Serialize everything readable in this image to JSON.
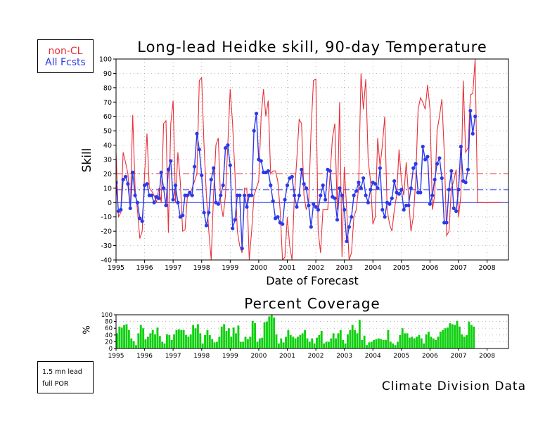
{
  "legend": {
    "items": [
      {
        "label": "non-CL",
        "color": "#e8303a"
      },
      {
        "label": "All Fcsts",
        "color": "#2a3ae8"
      }
    ]
  },
  "note": {
    "line1": "1.5 mn lead",
    "line2": "full POR"
  },
  "source_label": "Climate Division Data",
  "colors": {
    "red": "#e8303a",
    "blue": "#2a3ae8",
    "green": "#10d010"
  },
  "chart_data": [
    {
      "type": "line",
      "title": "Long-lead Heidke skill, 90-day Temperature",
      "xlabel": "Date of Forecast",
      "ylabel": "Skill",
      "xlim": [
        1995.0,
        2008.75
      ],
      "ylim": [
        -40,
        100
      ],
      "x_ticks": [
        1995,
        1996,
        1997,
        1998,
        1999,
        2000,
        2001,
        2002,
        2003,
        2004,
        2005,
        2006,
        2007,
        2008
      ],
      "y_ticks": [
        -40,
        -30,
        -20,
        -10,
        0,
        10,
        20,
        30,
        40,
        50,
        60,
        70,
        80,
        90,
        100
      ],
      "grid": true,
      "reference_lines": [
        {
          "series": "non-CL",
          "value": 20,
          "color": "#e8303a"
        },
        {
          "series": "All Fcsts",
          "value": 9,
          "color": "#2a3ae8"
        }
      ],
      "series": [
        {
          "name": "non-CL",
          "color": "#e8303a",
          "start": 1995.0,
          "step": 0.08333,
          "values": [
            35,
            -10,
            -7,
            35,
            28,
            20,
            -5,
            61,
            10,
            -5,
            -25,
            -20,
            20,
            48,
            10,
            8,
            5,
            0,
            10,
            0,
            55,
            57,
            -21,
            55,
            71,
            0,
            35,
            15,
            -20,
            -19,
            5,
            5,
            10,
            15,
            20,
            85,
            87,
            40,
            5,
            -20,
            -40,
            5,
            40,
            45,
            0,
            -10,
            5,
            40,
            79,
            55,
            20,
            -20,
            -30,
            -35,
            10,
            10,
            -40,
            -20,
            5,
            10,
            15,
            60,
            79,
            60,
            71,
            20,
            22,
            22,
            15,
            -5,
            -40,
            -38,
            -10,
            -30,
            -40,
            5,
            30,
            58,
            55,
            5,
            -5,
            0,
            50,
            85,
            86,
            -20,
            -35,
            -5,
            -5,
            -5,
            20,
            45,
            55,
            -5,
            70,
            -38,
            25,
            -5,
            -40,
            -35,
            -10,
            -5,
            10,
            90,
            65,
            86,
            30,
            15,
            -15,
            -10,
            45,
            25,
            40,
            60,
            -5,
            -15,
            -20,
            -5,
            5,
            37,
            15,
            5,
            28,
            5,
            -20,
            -10,
            15,
            65,
            73,
            70,
            65,
            82,
            65,
            -5,
            5,
            50,
            60,
            72,
            35,
            -23,
            -20,
            10,
            15,
            23,
            -10,
            5,
            85,
            35,
            38,
            75,
            76,
            100,
            0,
            0,
            0,
            0,
            0,
            0,
            0,
            0,
            0,
            0,
            0
          ]
        },
        {
          "name": "All Fcsts",
          "color": "#2a3ae8",
          "start": 1995.0,
          "step": 0.08333,
          "values": [
            14,
            -6,
            -5,
            16,
            18,
            13,
            -4,
            21,
            5,
            0,
            -11,
            -13,
            12,
            13,
            5,
            5,
            0,
            4,
            3,
            21,
            10,
            -2,
            23,
            29,
            2,
            12,
            0,
            -10,
            -9,
            5,
            5,
            7,
            5,
            25,
            48,
            37,
            19,
            -7,
            -16,
            -7,
            16,
            24,
            0,
            -1,
            5,
            12,
            38,
            40,
            26,
            -18,
            -12,
            5,
            5,
            -32,
            5,
            -3,
            5,
            5,
            50,
            62,
            30,
            29,
            21,
            21,
            22,
            12,
            1,
            -11,
            -10,
            -14,
            -15,
            2,
            12,
            17,
            18,
            5,
            -3,
            5,
            23,
            13,
            10,
            -2,
            -17,
            -1,
            -3,
            -5,
            5,
            12,
            2,
            23,
            22,
            4,
            3,
            -12,
            10,
            5,
            -5,
            -27,
            -17,
            -10,
            5,
            8,
            14,
            10,
            17,
            5,
            0,
            9,
            14,
            13,
            10,
            24,
            -5,
            -10,
            0,
            -1,
            3,
            15,
            7,
            6,
            9,
            -5,
            -2,
            -2,
            10,
            24,
            27,
            7,
            7,
            39,
            30,
            32,
            -1,
            5,
            16,
            27,
            31,
            17,
            -14,
            -14,
            9,
            22,
            -4,
            -6,
            9,
            39,
            15,
            14,
            23,
            64,
            48,
            60
          ]
        }
      ]
    },
    {
      "type": "bar",
      "title": "Percent Coverage",
      "ylabel": "%",
      "xlim": [
        1995.0,
        2008.75
      ],
      "ylim": [
        0,
        100
      ],
      "x_ticks": [
        1995,
        1996,
        1997,
        1998,
        1999,
        2000,
        2001,
        2002,
        2003,
        2004,
        2005,
        2006,
        2007,
        2008
      ],
      "y_ticks": [
        0,
        20,
        40,
        60,
        80,
        100
      ],
      "color": "#10d010",
      "start": 1995.0,
      "step": 0.08333,
      "values": [
        45,
        65,
        62,
        70,
        72,
        55,
        30,
        22,
        10,
        45,
        70,
        60,
        27,
        35,
        45,
        55,
        42,
        62,
        37,
        20,
        15,
        42,
        40,
        25,
        42,
        55,
        57,
        55,
        55,
        40,
        35,
        42,
        70,
        60,
        72,
        45,
        15,
        40,
        55,
        40,
        28,
        18,
        20,
        35,
        65,
        72,
        52,
        60,
        35,
        62,
        45,
        68,
        20,
        20,
        35,
        28,
        35,
        82,
        75,
        20,
        30,
        32,
        78,
        80,
        95,
        100,
        92,
        42,
        15,
        30,
        18,
        35,
        55,
        40,
        35,
        30,
        35,
        40,
        45,
        55,
        30,
        20,
        30,
        15,
        32,
        40,
        52,
        15,
        20,
        20,
        30,
        45,
        30,
        45,
        55,
        25,
        15,
        42,
        55,
        70,
        55,
        45,
        85,
        25,
        38,
        10,
        18,
        20,
        25,
        28,
        30,
        28,
        25,
        25,
        55,
        20,
        15,
        10,
        20,
        40,
        60,
        45,
        45,
        32,
        35,
        30,
        35,
        40,
        30,
        15,
        42,
        50,
        35,
        30,
        25,
        35,
        50,
        55,
        60,
        62,
        75,
        72,
        70,
        82,
        65,
        42,
        35,
        40,
        80,
        70,
        65
      ]
    }
  ]
}
